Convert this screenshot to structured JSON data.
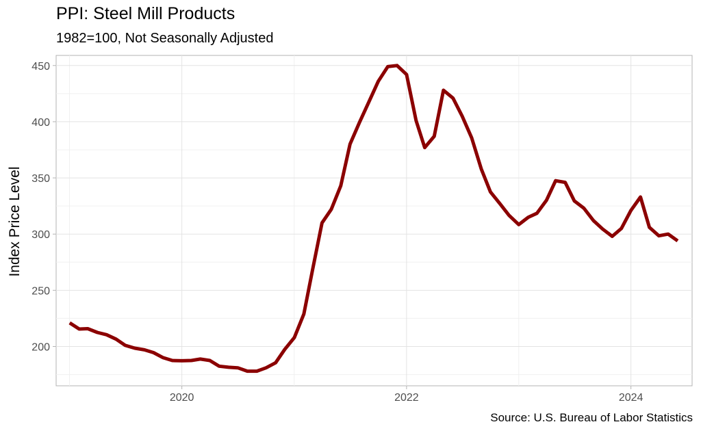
{
  "chart_data": {
    "type": "line",
    "title": "PPI: Steel Mill Products",
    "subtitle": "1982=100, Not Seasonally Adjusted",
    "ylabel": "Index Price Level",
    "xlabel": "",
    "caption": "Source: U.S. Bureau of Labor Statistics",
    "ylim": [
      165,
      459
    ],
    "xlim": [
      "2018-11-18",
      "2024-07-18"
    ],
    "y_ticks": [
      200,
      250,
      300,
      350,
      400,
      450
    ],
    "x_ticks": [
      "2020-01-01",
      "2022-01-01",
      "2024-01-01"
    ],
    "x_tick_labels": [
      "2020",
      "2022",
      "2024"
    ],
    "grid": true,
    "line_color": "#8b0000",
    "series": [
      {
        "x": [
          "2019-01",
          "2019-02",
          "2019-03",
          "2019-04",
          "2019-05",
          "2019-06",
          "2019-07",
          "2019-08",
          "2019-09",
          "2019-10",
          "2019-11",
          "2019-12",
          "2020-01",
          "2020-02",
          "2020-03",
          "2020-04",
          "2020-05",
          "2020-06",
          "2020-07",
          "2020-08",
          "2020-09",
          "2020-10",
          "2020-11",
          "2020-12",
          "2021-01",
          "2021-02",
          "2021-03",
          "2021-04",
          "2021-05",
          "2021-06",
          "2021-07",
          "2021-08",
          "2021-09",
          "2021-10",
          "2021-11",
          "2021-12",
          "2022-01",
          "2022-02",
          "2022-03",
          "2022-04",
          "2022-05",
          "2022-06",
          "2022-07",
          "2022-08",
          "2022-09",
          "2022-10",
          "2022-11",
          "2022-12",
          "2023-01",
          "2023-02",
          "2023-03",
          "2023-04",
          "2023-05",
          "2023-06",
          "2023-07",
          "2023-08",
          "2023-09",
          "2023-10",
          "2023-11",
          "2023-12",
          "2024-01",
          "2024-02",
          "2024-03",
          "2024-04",
          "2024-05",
          "2024-06"
        ],
        "values": [
          221,
          215.5,
          215.8,
          212.5,
          210.5,
          206.5,
          201,
          198.5,
          197,
          194.5,
          190,
          187.5,
          187.3,
          187.5,
          188.8,
          187.5,
          182.5,
          181.5,
          181,
          178,
          178,
          181,
          185.5,
          197.5,
          208,
          229,
          268,
          310,
          322,
          343,
          380,
          399.5,
          418,
          436,
          449,
          450,
          442,
          401,
          377,
          387,
          428,
          421,
          405,
          385.5,
          358,
          337.5,
          327,
          316.5,
          308.5,
          315,
          318.5,
          330,
          347.5,
          346,
          329.5,
          323,
          312,
          304.5,
          298,
          305,
          321,
          333,
          306,
          298.5,
          300,
          294
        ]
      }
    ]
  }
}
